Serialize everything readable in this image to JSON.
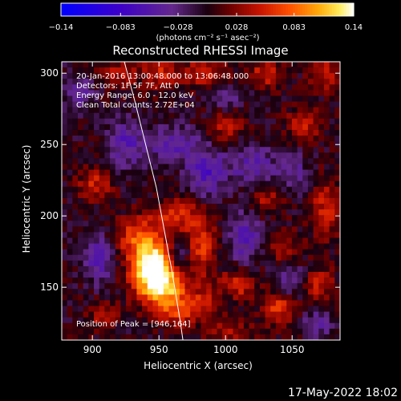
{
  "footer_date": "17-May-2022 18:02",
  "chart_data": {
    "type": "heatmap",
    "title": "Reconstructed RHESSI Image",
    "xlabel": "Heliocentric X (arcsec)",
    "ylabel": "Heliocentric Y (arcsec)",
    "xlim": [
      877,
      1086
    ],
    "ylim": [
      113,
      308
    ],
    "xticks": [
      900,
      950,
      1000,
      1050
    ],
    "yticks": [
      150,
      200,
      250,
      300
    ],
    "colorbar": {
      "label": "(photons cm⁻² s⁻¹ asec⁻²)",
      "min": -0.14,
      "max": 0.14,
      "ticks": [
        -0.14,
        -0.083,
        -0.028,
        0.028,
        0.083,
        0.14
      ],
      "tick_labels": [
        "−0.14",
        "−0.083",
        "−0.028",
        "0.028",
        "0.083",
        "0.14"
      ]
    },
    "annotations": [
      "20-Jan-2016 13:00:48.000 to 13:06:48.000",
      "Detectors: 1F 5F 7F, Att 0",
      "Energy Range: 6.0 - 12.0 keV",
      "Clean      Total counts: 2.72E+04"
    ],
    "peak_label": "Position of Peak = [946,164]",
    "peak": [
      946,
      164
    ],
    "grid_cells": [
      52,
      49
    ],
    "sources": [
      {
        "x": 946,
        "y": 164,
        "amp": 0.16,
        "sx": 11,
        "sy": 11
      },
      {
        "x": 954,
        "y": 148,
        "amp": 0.09,
        "sx": 14,
        "sy": 10
      },
      {
        "x": 935,
        "y": 185,
        "amp": 0.07,
        "sx": 12,
        "sy": 10
      },
      {
        "x": 962,
        "y": 200,
        "amp": 0.06,
        "sx": 12,
        "sy": 8
      },
      {
        "x": 982,
        "y": 180,
        "amp": 0.06,
        "sx": 7,
        "sy": 16
      },
      {
        "x": 965,
        "y": 132,
        "amp": 0.05,
        "sx": 12,
        "sy": 7
      },
      {
        "x": 990,
        "y": 140,
        "amp": 0.05,
        "sx": 10,
        "sy": 7
      },
      {
        "x": 1010,
        "y": 152,
        "amp": 0.06,
        "sx": 9,
        "sy": 8
      },
      {
        "x": 1040,
        "y": 135,
        "amp": 0.06,
        "sx": 9,
        "sy": 8
      },
      {
        "x": 1070,
        "y": 152,
        "amp": 0.05,
        "sx": 8,
        "sy": 8
      },
      {
        "x": 1045,
        "y": 178,
        "amp": 0.04,
        "sx": 8,
        "sy": 8
      },
      {
        "x": 1075,
        "y": 205,
        "amp": 0.05,
        "sx": 8,
        "sy": 14
      },
      {
        "x": 1060,
        "y": 265,
        "amp": 0.05,
        "sx": 9,
        "sy": 8
      },
      {
        "x": 1075,
        "y": 300,
        "amp": 0.05,
        "sx": 8,
        "sy": 8
      },
      {
        "x": 1030,
        "y": 300,
        "amp": 0.05,
        "sx": 9,
        "sy": 8
      },
      {
        "x": 985,
        "y": 300,
        "amp": 0.05,
        "sx": 12,
        "sy": 8
      },
      {
        "x": 950,
        "y": 300,
        "amp": 0.05,
        "sx": 10,
        "sy": 8
      },
      {
        "x": 920,
        "y": 300,
        "amp": 0.04,
        "sx": 9,
        "sy": 7
      },
      {
        "x": 1030,
        "y": 212,
        "amp": 0.04,
        "sx": 9,
        "sy": 8
      },
      {
        "x": 1000,
        "y": 262,
        "amp": 0.04,
        "sx": 10,
        "sy": 7
      },
      {
        "x": 902,
        "y": 222,
        "amp": 0.05,
        "sx": 9,
        "sy": 8
      },
      {
        "x": 908,
        "y": 130,
        "amp": 0.04,
        "sx": 8,
        "sy": 7
      },
      {
        "x": 1005,
        "y": 118,
        "amp": 0.04,
        "sx": 12,
        "sy": 6
      },
      {
        "x": 960,
        "y": 250,
        "amp": -0.05,
        "sx": 14,
        "sy": 9
      },
      {
        "x": 985,
        "y": 230,
        "amp": -0.06,
        "sx": 10,
        "sy": 12
      },
      {
        "x": 1020,
        "y": 235,
        "amp": -0.05,
        "sx": 12,
        "sy": 10
      },
      {
        "x": 1015,
        "y": 185,
        "amp": -0.05,
        "sx": 9,
        "sy": 14
      },
      {
        "x": 965,
        "y": 170,
        "amp": -0.05,
        "sx": 6,
        "sy": 7
      },
      {
        "x": 925,
        "y": 250,
        "amp": -0.05,
        "sx": 9,
        "sy": 12
      },
      {
        "x": 905,
        "y": 170,
        "amp": -0.05,
        "sx": 8,
        "sy": 12
      },
      {
        "x": 1050,
        "y": 155,
        "amp": -0.04,
        "sx": 8,
        "sy": 8
      },
      {
        "x": 1050,
        "y": 230,
        "amp": -0.04,
        "sx": 8,
        "sy": 10
      },
      {
        "x": 1000,
        "y": 140,
        "amp": -0.03,
        "sx": 9,
        "sy": 6
      },
      {
        "x": 890,
        "y": 285,
        "amp": -0.04,
        "sx": 8,
        "sy": 9
      },
      {
        "x": 1070,
        "y": 125,
        "amp": -0.04,
        "sx": 8,
        "sy": 7
      },
      {
        "x": 1000,
        "y": 285,
        "amp": -0.04,
        "sx": 10,
        "sy": 6
      }
    ],
    "limb_curve": [
      [
        924,
        308
      ],
      [
        932,
        280
      ],
      [
        940,
        250
      ],
      [
        948,
        220
      ],
      [
        954,
        190
      ],
      [
        960,
        160
      ],
      [
        966,
        126
      ],
      [
        968,
        113
      ]
    ]
  }
}
